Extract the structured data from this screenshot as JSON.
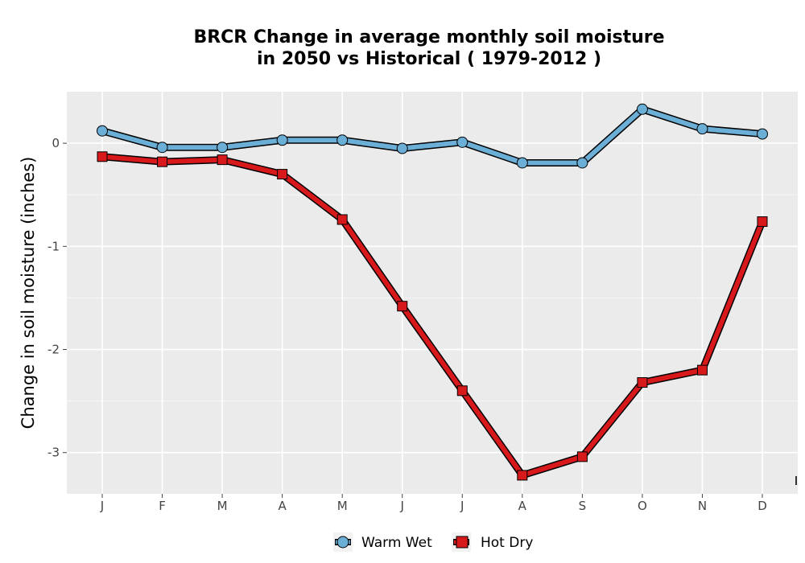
{
  "chart_data": {
    "type": "line",
    "title_line1": "BRCR  Change in average monthly soil moisture",
    "title_line2": "in 2050 vs Historical ( 1979-2012 )",
    "xlabel": "",
    "ylabel": "Change in soil moisture (inches)",
    "categories": [
      "J",
      "F",
      "M",
      "A",
      "M",
      "J",
      "J",
      "A",
      "S",
      "O",
      "N",
      "D"
    ],
    "y_ticks": [
      0,
      -1,
      -2,
      -3
    ],
    "y_tick_labels": [
      "0",
      "-1",
      "-2",
      "-3"
    ],
    "ylim": [
      -3.4,
      0.5
    ],
    "grid": true,
    "legend_position": "bottom",
    "series": [
      {
        "name": "Warm Wet",
        "marker": "circle",
        "color": "#6baed6",
        "values": [
          0.12,
          -0.04,
          -0.04,
          0.03,
          0.03,
          -0.05,
          0.01,
          -0.19,
          -0.19,
          0.33,
          0.14,
          0.09
        ]
      },
      {
        "name": "Hot Dry",
        "marker": "square",
        "color": "#d7191c",
        "values": [
          -0.13,
          -0.18,
          -0.16,
          -0.3,
          -0.74,
          -1.58,
          -2.4,
          -3.22,
          -3.04,
          -2.32,
          -2.2,
          -0.76
        ]
      }
    ]
  }
}
